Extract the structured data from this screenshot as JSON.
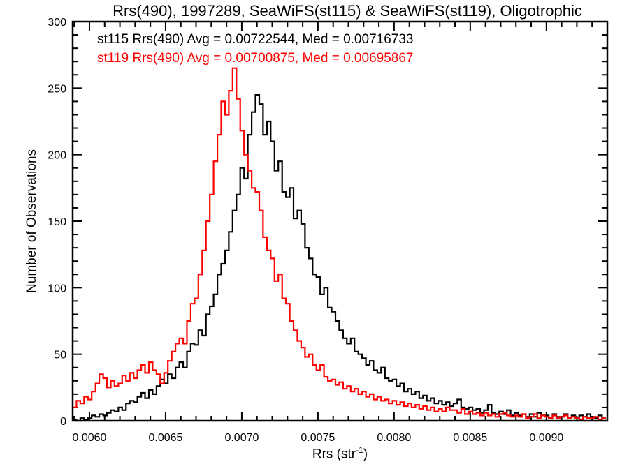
{
  "title": "Rrs(490), 1997289, SeaWiFS(st115) & SeaWiFS(st119), Oligotrophic",
  "legend": {
    "st115": {
      "text": "st115 Rrs(490) Avg = 0.00722544, Med = 0.00716733",
      "color": "#000000"
    },
    "st119": {
      "text": "st119 Rrs(490) Avg = 0.00700875, Med = 0.00695867",
      "color": "#ff0000"
    }
  },
  "axes": {
    "ylabel": "Number of Observations",
    "xlabel": {
      "prefix": "Rrs (str",
      "sup": "-1",
      "suffix": ")"
    }
  },
  "chart_data": {
    "type": "histogram",
    "title": "Rrs(490), 1997289, SeaWiFS(st115) & SeaWiFS(st119), Oligotrophic",
    "xlabel": "Rrs (str^-1)",
    "ylabel": "Number of Observations",
    "xlim": [
      0.00589,
      0.0094
    ],
    "ylim": [
      0,
      300
    ],
    "x_major_ticks": [
      0.006,
      0.0065,
      0.007,
      0.0075,
      0.008,
      0.0085,
      0.009
    ],
    "x_tick_labels": [
      "0.0060",
      "0.0065",
      "0.0070",
      "0.0075",
      "0.0080",
      "0.0085",
      "0.0090"
    ],
    "x_minor_step": 0.0001,
    "y_major_ticks": [
      0,
      50,
      100,
      150,
      200,
      250,
      300
    ],
    "y_minor_step": 10,
    "grid": false,
    "legend_position": "top-left-inside",
    "background": "#ffffff",
    "axis_color": "#000000",
    "bin_start": 0.00589,
    "bin_width": 2.5e-05,
    "series": [
      {
        "name": "st115 Rrs(490)",
        "color": "#000000",
        "avg": 0.00722544,
        "median": 0.00716733,
        "counts": [
          1,
          0,
          2,
          1,
          2,
          4,
          3,
          5,
          4,
          6,
          8,
          7,
          10,
          8,
          13,
          15,
          14,
          18,
          21,
          17,
          23,
          20,
          26,
          31,
          28,
          35,
          32,
          40,
          44,
          40,
          52,
          58,
          57,
          68,
          64,
          80,
          86,
          95,
          110,
          118,
          128,
          142,
          158,
          170,
          190,
          182,
          215,
          232,
          245,
          238,
          215,
          225,
          210,
          188,
          195,
          172,
          168,
          175,
          152,
          158,
          148,
          130,
          122,
          110,
          108,
          95,
          100,
          85,
          82,
          75,
          68,
          62,
          58,
          62,
          52,
          50,
          47,
          42,
          45,
          38,
          36,
          40,
          32,
          30,
          31,
          26,
          28,
          22,
          24,
          20,
          22,
          17,
          19,
          15,
          17,
          13,
          15,
          12,
          14,
          11,
          13,
          16,
          10,
          9,
          10,
          8,
          9,
          6,
          8,
          12,
          6,
          5,
          7,
          5,
          8,
          4,
          6,
          4,
          5,
          3,
          5,
          3,
          6,
          4,
          4,
          2,
          5,
          3,
          3,
          5,
          2,
          4,
          2,
          4,
          3,
          5,
          3,
          2,
          4,
          2
        ]
      },
      {
        "name": "st119 Rrs(490)",
        "color": "#ff0000",
        "avg": 0.00700875,
        "median": 0.00695867,
        "counts": [
          10,
          15,
          13,
          18,
          16,
          22,
          28,
          35,
          32,
          25,
          30,
          26,
          28,
          34,
          30,
          36,
          32,
          38,
          42,
          36,
          44,
          38,
          35,
          28,
          36,
          45,
          52,
          58,
          62,
          58,
          75,
          88,
          92,
          110,
          128,
          150,
          170,
          195,
          215,
          240,
          230,
          248,
          265,
          242,
          218,
          200,
          188,
          175,
          172,
          158,
          138,
          128,
          122,
          105,
          110,
          92,
          88,
          75,
          68,
          60,
          55,
          48,
          50,
          42,
          38,
          42,
          33,
          30,
          31,
          27,
          29,
          24,
          26,
          22,
          24,
          20,
          22,
          18,
          20,
          16,
          18,
          15,
          16,
          13,
          15,
          12,
          14,
          11,
          13,
          10,
          12,
          9,
          11,
          8,
          10,
          7,
          9,
          7,
          10,
          8,
          8,
          6,
          9,
          5,
          7,
          5,
          6,
          4,
          6,
          4,
          5,
          3,
          5,
          6,
          4,
          3,
          4,
          3,
          5,
          2,
          3,
          5,
          2,
          4,
          3,
          2,
          4,
          2,
          3,
          4,
          2,
          3,
          2,
          1,
          3,
          2,
          2,
          3,
          1,
          2
        ]
      }
    ]
  }
}
